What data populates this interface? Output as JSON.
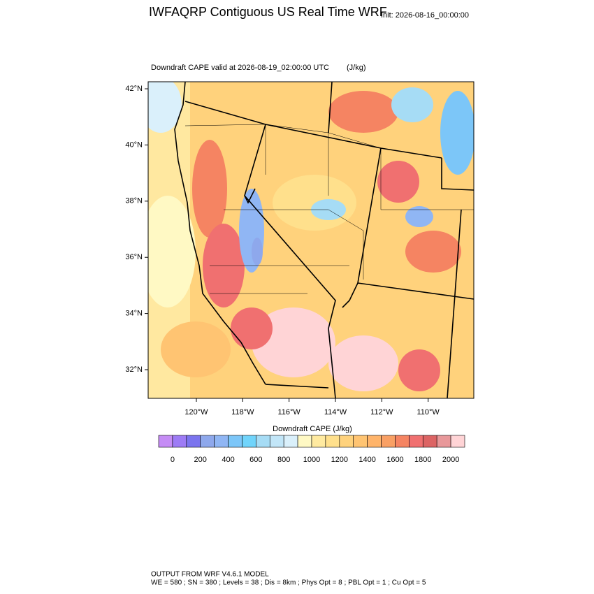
{
  "header": {
    "title": "IWFAQRP Contiguous US Real Time WRF",
    "init": "Init: 2026-08-16_00:00:00"
  },
  "map": {
    "subtitle": "Downdraft CAPE valid at 2026-08-19_02:00:00 UTC",
    "units": "(J/kg)",
    "xlim": [
      -122.08,
      -108.03
    ],
    "ylim": [
      30.98,
      42.25
    ],
    "xticks": [
      {
        "value": -120,
        "label": "120°W"
      },
      {
        "value": -118,
        "label": "118°W"
      },
      {
        "value": -116,
        "label": "116°W"
      },
      {
        "value": -114,
        "label": "114°W"
      },
      {
        "value": -112,
        "label": "112°W"
      },
      {
        "value": -110,
        "label": "110°W"
      }
    ],
    "yticks": [
      {
        "value": 32,
        "label": "32°N"
      },
      {
        "value": 34,
        "label": "34°N"
      },
      {
        "value": 36,
        "label": "36°N"
      },
      {
        "value": 38,
        "label": "38°N"
      },
      {
        "value": 40,
        "label": "40°N"
      },
      {
        "value": 42,
        "label": "42°N"
      }
    ]
  },
  "colorbar": {
    "title": "Downdraft CAPE  (J/kg)",
    "ticks": [
      0,
      200,
      400,
      600,
      800,
      1000,
      1200,
      1400,
      1600,
      1800,
      2000
    ],
    "colors": [
      "#c58cf5",
      "#9d7bf5",
      "#7b74ee",
      "#8ea8ec",
      "#90b6f4",
      "#7cc6f8",
      "#70d4fb",
      "#a6dcf5",
      "#c2e6f8",
      "#daf0fb",
      "#fff9c4",
      "#ffeaa0",
      "#ffe08c",
      "#ffd27c",
      "#ffc472",
      "#ffb46a",
      "#f9a064",
      "#f58462",
      "#f07070",
      "#dc6464",
      "#e8989a",
      "#ffd4d6"
    ]
  },
  "footer": [
    "OUTPUT FROM WRF V4.6.1 MODEL",
    "WE = 580 ; SN = 380 ; Levels = 38 ; Dis = 8km ; Phys Opt = 8 ; PBL Opt = 1 ; Cu Opt = 5"
  ]
}
